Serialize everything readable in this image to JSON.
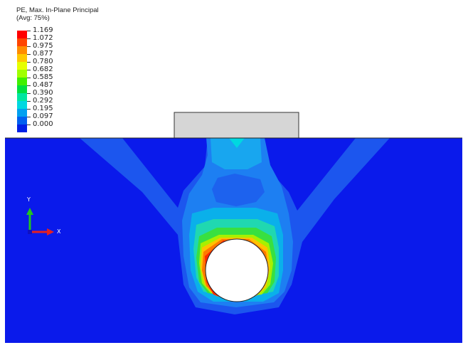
{
  "legend": {
    "title_line1": "PE, Max. In-Plane Principal",
    "title_line2": "(Avg: 75%)",
    "levels": [
      {
        "label": "1.169",
        "color": "#ff0000"
      },
      {
        "label": "1.072",
        "color": "#ff4500"
      },
      {
        "label": "0.975",
        "color": "#ff8c00"
      },
      {
        "label": "0.877",
        "color": "#ffc800"
      },
      {
        "label": "0.780",
        "color": "#e6ff00"
      },
      {
        "label": "0.682",
        "color": "#a0ff00"
      },
      {
        "label": "0.585",
        "color": "#40f000"
      },
      {
        "label": "0.487",
        "color": "#00e040"
      },
      {
        "label": "0.390",
        "color": "#00e6a0"
      },
      {
        "label": "0.292",
        "color": "#00d8e0"
      },
      {
        "label": "0.195",
        "color": "#00a0f0"
      },
      {
        "label": "0.097",
        "color": "#0060f0"
      },
      {
        "label": "0.000",
        "color": "#0020e6"
      }
    ]
  },
  "model": {
    "background_color": "#0a1aeb",
    "footing_color": "#d6d6d6"
  },
  "triad": {
    "x_label": "X",
    "y_label": "Y"
  }
}
